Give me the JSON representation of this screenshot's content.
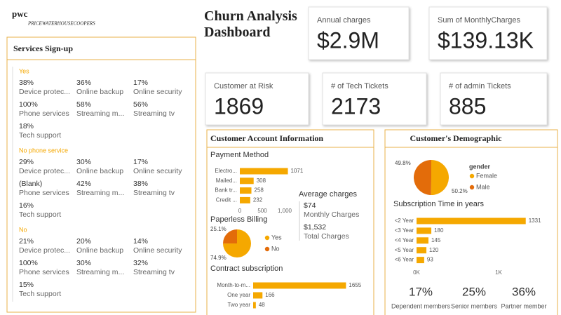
{
  "logo": {
    "brand": "pwc",
    "name": "PRICEWATERHOUSECOOPERS"
  },
  "title": "Churn Analysis Dashboard",
  "kpis": [
    {
      "label": "Annual charges",
      "value": "$2.9M"
    },
    {
      "label": "Sum of MonthlyCharges",
      "value": "$139.13K"
    },
    {
      "label": "Customer at Risk",
      "value": 1869
    },
    {
      "label": "# of Tech Tickets",
      "value": 2173
    },
    {
      "label": "# of admin Tickets",
      "value": 885
    }
  ],
  "services": {
    "title": "Services Sign-up",
    "groups": [
      {
        "name": "Yes",
        "items": [
          {
            "value": "38%",
            "label": "Device protec..."
          },
          {
            "value": "36%",
            "label": "Online backup"
          },
          {
            "value": "17%",
            "label": "Online security"
          },
          {
            "value": "100%",
            "label": "Phone services"
          },
          {
            "value": "58%",
            "label": "Streaming m..."
          },
          {
            "value": "56%",
            "label": "Streaming tv"
          },
          {
            "value": "18%",
            "label": "Tech support"
          }
        ]
      },
      {
        "name": "No phone service",
        "items": [
          {
            "value": "29%",
            "label": "Device protec..."
          },
          {
            "value": "30%",
            "label": "Online backup"
          },
          {
            "value": "17%",
            "label": "Online security"
          },
          {
            "value": "(Blank)",
            "label": "Phone services"
          },
          {
            "value": "42%",
            "label": "Streaming m..."
          },
          {
            "value": "38%",
            "label": "Streaming tv"
          },
          {
            "value": "16%",
            "label": "Tech support"
          }
        ]
      },
      {
        "name": "No",
        "items": [
          {
            "value": "21%",
            "label": "Device protec..."
          },
          {
            "value": "20%",
            "label": "Online backup"
          },
          {
            "value": "14%",
            "label": "Online security"
          },
          {
            "value": "100%",
            "label": "Phone services"
          },
          {
            "value": "30%",
            "label": "Streaming m..."
          },
          {
            "value": "32%",
            "label": "Streaming tv"
          },
          {
            "value": "15%",
            "label": "Tech support"
          }
        ]
      }
    ]
  },
  "account": {
    "title": "Customer Account Information",
    "average": {
      "title": "Average charges",
      "items": [
        {
          "value": "$74",
          "label": "Monthly Charges"
        },
        {
          "value": "$1,532",
          "label": "Total Charges"
        }
      ]
    }
  },
  "demographic": {
    "title": "Customer's Demographic",
    "stats": [
      {
        "value": "17%",
        "label": "Dependent members"
      },
      {
        "value": "25%",
        "label": "Senior members"
      },
      {
        "value": "36%",
        "label": "Partner member"
      }
    ]
  },
  "chart_data": [
    {
      "type": "bar",
      "orientation": "horizontal",
      "title": "Payment Method",
      "categories": [
        "Electro...",
        "Mailed...",
        "Bank tr...",
        "Credit ..."
      ],
      "values": [
        1071,
        308,
        258,
        232
      ],
      "color": "#F5A800",
      "xlim": [
        0,
        1100
      ],
      "xticks": [
        0,
        500,
        {
          "value": 1000,
          "label": "1,000"
        }
      ]
    },
    {
      "type": "pie",
      "title": "Paperless Billing",
      "categories": [
        "Yes",
        "No"
      ],
      "values": [
        74.9,
        25.1
      ],
      "value_labels": [
        "74.9%",
        "25.1%"
      ],
      "colors": [
        "#F5A800",
        "#E36C0A"
      ]
    },
    {
      "type": "bar",
      "orientation": "horizontal",
      "title": "Contract subscription",
      "categories": [
        "Month-to-m...",
        "One year",
        "Two year"
      ],
      "values": [
        1655,
        166,
        48
      ],
      "color": "#F5A800",
      "xlim": [
        0,
        1700
      ]
    },
    {
      "type": "pie",
      "legend_title": "gender",
      "categories": [
        "Female",
        "Male"
      ],
      "values": [
        50.2,
        49.8
      ],
      "value_labels": [
        "50.2%",
        "49.8%"
      ],
      "colors": [
        "#F5A800",
        "#E36C0A"
      ]
    },
    {
      "type": "bar",
      "orientation": "horizontal",
      "title": "Subscription Time in years",
      "categories": [
        "<2 Year",
        "<3 Year",
        "<4 Year",
        "<5 Year",
        "<6 Year"
      ],
      "values": [
        1331,
        180,
        145,
        120,
        93
      ],
      "color": "#F5A800",
      "xlim": [
        0,
        1400
      ],
      "xticks": [
        {
          "value": 0,
          "label": "0K"
        },
        {
          "value": 1000,
          "label": "1K"
        }
      ]
    }
  ]
}
